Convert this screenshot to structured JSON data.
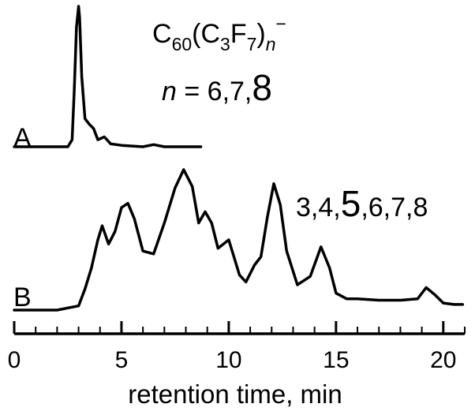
{
  "chart_data": {
    "type": "line",
    "xlabel": "retention time, min",
    "ylabel": "",
    "xlim": [
      0,
      21
    ],
    "x_ticks": [
      "0",
      "5",
      "10",
      "15",
      "20"
    ],
    "grid": false,
    "legend": "none",
    "line_color": "#000000",
    "annotations": {
      "formula": {
        "base": "C",
        "sub1": "60",
        "mid1": "(C",
        "sub2": "3",
        "mid2": "F",
        "sub3": "7",
        "mid3": ")",
        "sub4": "n",
        "sup": "−"
      },
      "n_var": "n",
      "n_eq": " = 6,7,",
      "n_big": "8",
      "b_pre": "3,4,",
      "b_big": "5",
      "b_post": ",6,7,8"
    },
    "series": [
      {
        "name": "A",
        "x": [
          0.0,
          1.0,
          2.0,
          2.5,
          2.7,
          2.8,
          2.9,
          3.0,
          3.05,
          3.15,
          3.3,
          3.5,
          3.7,
          3.9,
          4.2,
          4.5,
          5.0,
          6.0,
          6.5,
          7.0,
          8.0,
          8.7
        ],
        "y": [
          0.0,
          0.0,
          0.0,
          0.0,
          0.05,
          0.4,
          0.85,
          1.0,
          0.92,
          0.5,
          0.2,
          0.16,
          0.13,
          0.05,
          0.07,
          0.02,
          0.01,
          0.0,
          0.015,
          0.0,
          0.0,
          0.0
        ]
      },
      {
        "name": "B",
        "x": [
          0.0,
          1.0,
          2.0,
          3.0,
          3.3,
          3.6,
          3.9,
          4.1,
          4.4,
          4.7,
          5.0,
          5.3,
          5.6,
          6.0,
          6.5,
          7.0,
          7.5,
          7.9,
          8.3,
          8.6,
          8.9,
          9.2,
          9.5,
          10.0,
          10.5,
          10.8,
          11.2,
          11.5,
          11.8,
          12.1,
          12.4,
          12.7,
          13.2,
          13.8,
          14.3,
          14.7,
          15.0,
          15.5,
          16.0,
          17.0,
          18.0,
          18.8,
          19.2,
          19.6,
          20.0,
          20.5,
          20.9
        ],
        "y": [
          0.0,
          0.0,
          0.0,
          0.03,
          0.15,
          0.3,
          0.5,
          0.6,
          0.47,
          0.56,
          0.73,
          0.76,
          0.65,
          0.42,
          0.4,
          0.62,
          0.87,
          1.0,
          0.88,
          0.62,
          0.7,
          0.62,
          0.44,
          0.5,
          0.25,
          0.2,
          0.32,
          0.38,
          0.66,
          0.9,
          0.75,
          0.42,
          0.18,
          0.24,
          0.45,
          0.3,
          0.12,
          0.08,
          0.08,
          0.07,
          0.07,
          0.08,
          0.16,
          0.11,
          0.05,
          0.04,
          0.04
        ]
      }
    ]
  }
}
